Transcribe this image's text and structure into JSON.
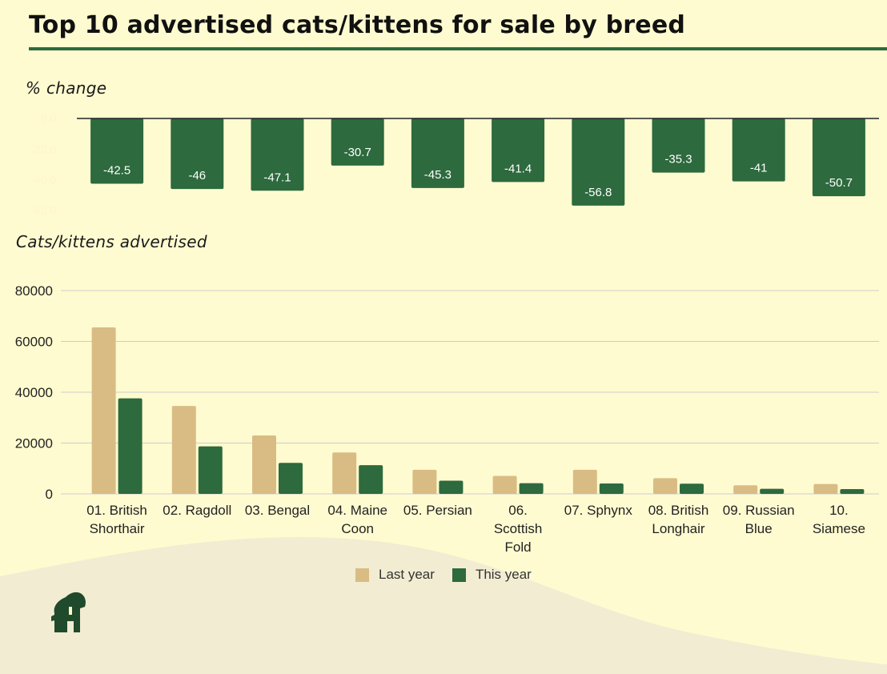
{
  "title": "Top 10 advertised cats/kittens for sale by breed",
  "colors": {
    "background": "#fffbd0",
    "accent": "#2d6a3e",
    "last_year": "#d9bc84",
    "this_year": "#2d6a3e",
    "wave": "#f2ecd2",
    "grid": "#cccccc"
  },
  "logo": {
    "icon": "elephant-house-icon"
  },
  "chart_data": [
    {
      "type": "bar",
      "ylabel": "% change",
      "categories": [
        "01. British Shorthair",
        "02. Ragdoll",
        "03. Bengal",
        "04. Maine Coon",
        "05. Persian",
        "06. Scottish Fold",
        "07. Sphynx",
        "08. British Longhair",
        "09. Russian Blue",
        "10. Siamese"
      ],
      "values": [
        -42.5,
        -46,
        -47.1,
        -30.7,
        -45.3,
        -41.4,
        -56.8,
        -35.3,
        -41,
        -50.7
      ],
      "value_labels": [
        "-42.5",
        "-46",
        "-47.1",
        "-30.7",
        "-45.3",
        "-41.4",
        "-56.8",
        "-35.3",
        "-41",
        "-50.7"
      ],
      "ylim": [
        -60,
        0
      ],
      "yticks": [
        0,
        -20,
        -40,
        -60
      ],
      "ytick_labels": [
        "0.0",
        "-20.0",
        "-40.0",
        "-60.0"
      ],
      "grid": false
    },
    {
      "type": "bar",
      "ylabel": "Cats/kittens advertised",
      "categories": [
        [
          "01. British",
          "Shorthair"
        ],
        [
          "02. Ragdoll"
        ],
        [
          "03. Bengal"
        ],
        [
          "04. Maine",
          "Coon"
        ],
        [
          "05. Persian"
        ],
        [
          "06.",
          "Scottish",
          "Fold"
        ],
        [
          "07. Sphynx"
        ],
        [
          "08. British",
          "Longhair"
        ],
        [
          "09. Russian",
          "Blue"
        ],
        [
          "10.",
          "Siamese"
        ]
      ],
      "series": [
        {
          "name": "Last year",
          "values": [
            65500,
            34600,
            23000,
            16300,
            9500,
            7100,
            9500,
            6200,
            3400,
            3900
          ]
        },
        {
          "name": "This year",
          "values": [
            37600,
            18700,
            12200,
            11300,
            5200,
            4200,
            4100,
            4000,
            2000,
            1900
          ]
        }
      ],
      "ylim": [
        0,
        80000
      ],
      "yticks": [
        0,
        20000,
        40000,
        60000,
        80000
      ],
      "ytick_labels": [
        "0",
        "20000",
        "40000",
        "60000",
        "80000"
      ],
      "grid": true,
      "legend": "bottom"
    }
  ]
}
